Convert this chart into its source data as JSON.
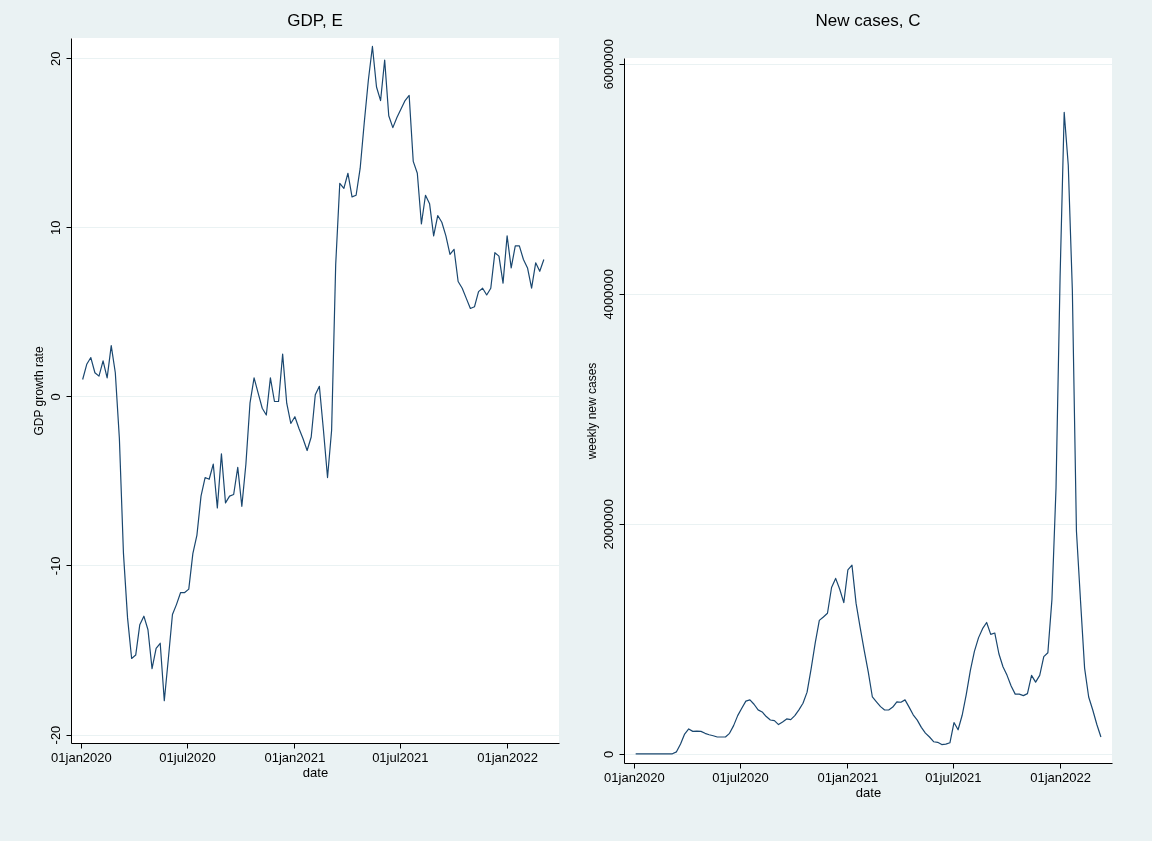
{
  "chart_data": [
    {
      "type": "line",
      "title": "GDP, E",
      "xlabel": "date",
      "ylabel": "GDP growth rate",
      "grid": "y",
      "xlim": [
        "2019-12-15",
        "2022-03-31"
      ],
      "xticks": [
        {
          "value": "2020-01-01",
          "label": "01jan2020"
        },
        {
          "value": "2020-07-01",
          "label": "01jul2020"
        },
        {
          "value": "2021-01-01",
          "label": "01jan2021"
        },
        {
          "value": "2021-07-01",
          "label": "01jul2021"
        },
        {
          "value": "2022-01-01",
          "label": "01jan2022"
        }
      ],
      "ylim": [
        -20.5,
        21.2
      ],
      "yticks": [
        -20,
        -10,
        0,
        10,
        20
      ],
      "x": [
        "2020-01-04",
        "2020-01-11",
        "2020-01-18",
        "2020-01-25",
        "2020-02-01",
        "2020-02-08",
        "2020-02-15",
        "2020-02-22",
        "2020-02-29",
        "2020-03-07",
        "2020-03-14",
        "2020-03-21",
        "2020-03-28",
        "2020-04-04",
        "2020-04-11",
        "2020-04-18",
        "2020-04-25",
        "2020-05-02",
        "2020-05-09",
        "2020-05-16",
        "2020-05-23",
        "2020-05-30",
        "2020-06-06",
        "2020-06-13",
        "2020-06-20",
        "2020-06-27",
        "2020-07-04",
        "2020-07-11",
        "2020-07-18",
        "2020-07-25",
        "2020-08-01",
        "2020-08-08",
        "2020-08-15",
        "2020-08-22",
        "2020-08-29",
        "2020-09-05",
        "2020-09-12",
        "2020-09-19",
        "2020-09-26",
        "2020-10-03",
        "2020-10-10",
        "2020-10-17",
        "2020-10-24",
        "2020-10-31",
        "2020-11-07",
        "2020-11-14",
        "2020-11-21",
        "2020-11-28",
        "2020-12-05",
        "2020-12-12",
        "2020-12-19",
        "2020-12-26",
        "2021-01-02",
        "2021-01-09",
        "2021-01-16",
        "2021-01-23",
        "2021-01-30",
        "2021-02-06",
        "2021-02-13",
        "2021-02-20",
        "2021-02-27",
        "2021-03-06",
        "2021-03-13",
        "2021-03-20",
        "2021-03-27",
        "2021-04-03",
        "2021-04-10",
        "2021-04-17",
        "2021-04-24",
        "2021-05-01",
        "2021-05-08",
        "2021-05-15",
        "2021-05-22",
        "2021-05-29",
        "2021-06-05",
        "2021-06-12",
        "2021-06-19",
        "2021-06-26",
        "2021-07-03",
        "2021-07-10",
        "2021-07-17",
        "2021-07-24",
        "2021-07-31",
        "2021-08-07",
        "2021-08-14",
        "2021-08-21",
        "2021-08-28",
        "2021-09-04",
        "2021-09-11",
        "2021-09-18",
        "2021-09-25",
        "2021-10-02",
        "2021-10-09",
        "2021-10-16",
        "2021-10-23",
        "2021-10-30",
        "2021-11-06",
        "2021-11-13",
        "2021-11-20",
        "2021-11-27",
        "2021-12-04",
        "2021-12-11",
        "2021-12-18",
        "2021-12-25",
        "2022-01-01",
        "2022-01-08",
        "2022-01-15",
        "2022-01-22",
        "2022-01-29",
        "2022-02-05",
        "2022-02-12",
        "2022-02-19",
        "2022-02-26",
        "2022-03-05"
      ],
      "series": [
        {
          "color": "#1a476f",
          "values": [
            1.0,
            1.9,
            2.3,
            1.4,
            1.2,
            2.1,
            1.1,
            3.0,
            1.4,
            -2.5,
            -9.3,
            -13.1,
            -15.5,
            -15.3,
            -13.5,
            -13.0,
            -13.8,
            -16.1,
            -14.9,
            -14.6,
            -18.0,
            -15.5,
            -12.9,
            -12.3,
            -11.6,
            -11.6,
            -11.4,
            -9.3,
            -8.2,
            -5.9,
            -4.8,
            -4.9,
            -4.0,
            -6.6,
            -3.4,
            -6.3,
            -5.9,
            -5.8,
            -4.2,
            -6.5,
            -4.0,
            -0.4,
            1.1,
            0.2,
            -0.7,
            -1.1,
            1.1,
            -0.3,
            -0.3,
            2.5,
            -0.4,
            -1.6,
            -1.2,
            -1.9,
            -2.5,
            -3.2,
            -2.4,
            0.1,
            0.6,
            -2.0,
            -4.8,
            -2.0,
            7.8,
            12.6,
            12.3,
            13.2,
            11.8,
            11.9,
            13.5,
            16.2,
            18.7,
            20.7,
            18.3,
            17.5,
            19.9,
            16.6,
            15.9,
            16.5,
            17.0,
            17.5,
            17.8,
            13.9,
            13.2,
            10.2,
            11.9,
            11.4,
            9.5,
            10.7,
            10.3,
            9.5,
            8.4,
            8.7,
            6.8,
            6.4,
            5.8,
            5.2,
            5.3,
            6.2,
            6.4,
            6.0,
            6.4,
            8.5,
            8.3,
            6.7,
            9.5,
            7.6,
            8.9,
            8.9,
            8.1,
            7.6,
            6.4,
            7.9,
            7.4,
            8.1
          ]
        }
      ]
    },
    {
      "type": "line",
      "title": "New cases, C",
      "xlabel": "date",
      "ylabel": "weekly new cases",
      "grid": "y",
      "xlim": [
        "2019-12-15",
        "2022-03-31"
      ],
      "xticks": [
        {
          "value": "2020-01-01",
          "label": "01jan2020"
        },
        {
          "value": "2020-07-01",
          "label": "01jul2020"
        },
        {
          "value": "2021-01-01",
          "label": "01jan2021"
        },
        {
          "value": "2021-07-01",
          "label": "01jul2021"
        },
        {
          "value": "2022-01-01",
          "label": "01jan2022"
        }
      ],
      "ylim": [
        -80000,
        6050000
      ],
      "yticks": [
        0,
        2000000,
        4000000,
        6000000
      ],
      "x": [
        "2020-01-04",
        "2020-01-11",
        "2020-01-18",
        "2020-01-25",
        "2020-02-01",
        "2020-02-08",
        "2020-02-15",
        "2020-02-22",
        "2020-02-29",
        "2020-03-07",
        "2020-03-14",
        "2020-03-21",
        "2020-03-28",
        "2020-04-04",
        "2020-04-11",
        "2020-04-18",
        "2020-04-25",
        "2020-05-02",
        "2020-05-09",
        "2020-05-16",
        "2020-05-23",
        "2020-05-30",
        "2020-06-06",
        "2020-06-13",
        "2020-06-20",
        "2020-06-27",
        "2020-07-04",
        "2020-07-11",
        "2020-07-18",
        "2020-07-25",
        "2020-08-01",
        "2020-08-08",
        "2020-08-15",
        "2020-08-22",
        "2020-08-29",
        "2020-09-05",
        "2020-09-12",
        "2020-09-19",
        "2020-09-26",
        "2020-10-03",
        "2020-10-10",
        "2020-10-17",
        "2020-10-24",
        "2020-10-31",
        "2020-11-07",
        "2020-11-14",
        "2020-11-21",
        "2020-11-28",
        "2020-12-05",
        "2020-12-12",
        "2020-12-19",
        "2020-12-26",
        "2021-01-02",
        "2021-01-09",
        "2021-01-16",
        "2021-01-23",
        "2021-01-30",
        "2021-02-06",
        "2021-02-13",
        "2021-02-20",
        "2021-02-27",
        "2021-03-06",
        "2021-03-13",
        "2021-03-20",
        "2021-03-27",
        "2021-04-03",
        "2021-04-10",
        "2021-04-17",
        "2021-04-24",
        "2021-05-01",
        "2021-05-08",
        "2021-05-15",
        "2021-05-22",
        "2021-05-29",
        "2021-06-05",
        "2021-06-12",
        "2021-06-19",
        "2021-06-26",
        "2021-07-03",
        "2021-07-10",
        "2021-07-17",
        "2021-07-24",
        "2021-07-31",
        "2021-08-07",
        "2021-08-14",
        "2021-08-21",
        "2021-08-28",
        "2021-09-04",
        "2021-09-11",
        "2021-09-18",
        "2021-09-25",
        "2021-10-02",
        "2021-10-09",
        "2021-10-16",
        "2021-10-23",
        "2021-10-30",
        "2021-11-06",
        "2021-11-13",
        "2021-11-20",
        "2021-11-27",
        "2021-12-04",
        "2021-12-11",
        "2021-12-18",
        "2021-12-25",
        "2022-01-01",
        "2022-01-08",
        "2022-01-15",
        "2022-01-22",
        "2022-01-29",
        "2022-02-05",
        "2022-02-12",
        "2022-02-19",
        "2022-02-26",
        "2022-03-05",
        "2022-03-12"
      ],
      "series": [
        {
          "color": "#1a476f",
          "values": [
            0,
            0,
            0,
            0,
            0,
            0,
            0,
            0,
            0,
            0,
            17000,
            85000,
            172000,
            216000,
            195000,
            198000,
            195000,
            178000,
            166000,
            157000,
            146000,
            146000,
            146000,
            178000,
            245000,
            332000,
            396000,
            458000,
            469000,
            431000,
            382000,
            364000,
            324000,
            294000,
            289000,
            254000,
            277000,
            303000,
            297000,
            332000,
            382000,
            440000,
            536000,
            741000,
            965000,
            1160000,
            1190000,
            1222000,
            1446000,
            1525000,
            1431000,
            1315000,
            1600000,
            1640000,
            1310000,
            1100000,
            900000,
            710000,
            494000,
            452000,
            410000,
            381000,
            381000,
            406000,
            452000,
            448000,
            469000,
            406000,
            339000,
            293000,
            230000,
            180000,
            146000,
            105000,
            100000,
            80000,
            84000,
            96000,
            272000,
            209000,
            335000,
            515000,
            724000,
            891000,
            1008000,
            1088000,
            1142000,
            1038000,
            1050000,
            870000,
            757000,
            682000,
            590000,
            519000,
            519000,
            506000,
            523000,
            682000,
            623000,
            682000,
            845000,
            879000,
            1343000,
            2314000,
            4155000,
            5577000,
            5117000,
            4029000,
            1937000,
            1331000,
            745000,
            494000,
            381000,
            255000,
            146000
          ]
        }
      ]
    }
  ]
}
